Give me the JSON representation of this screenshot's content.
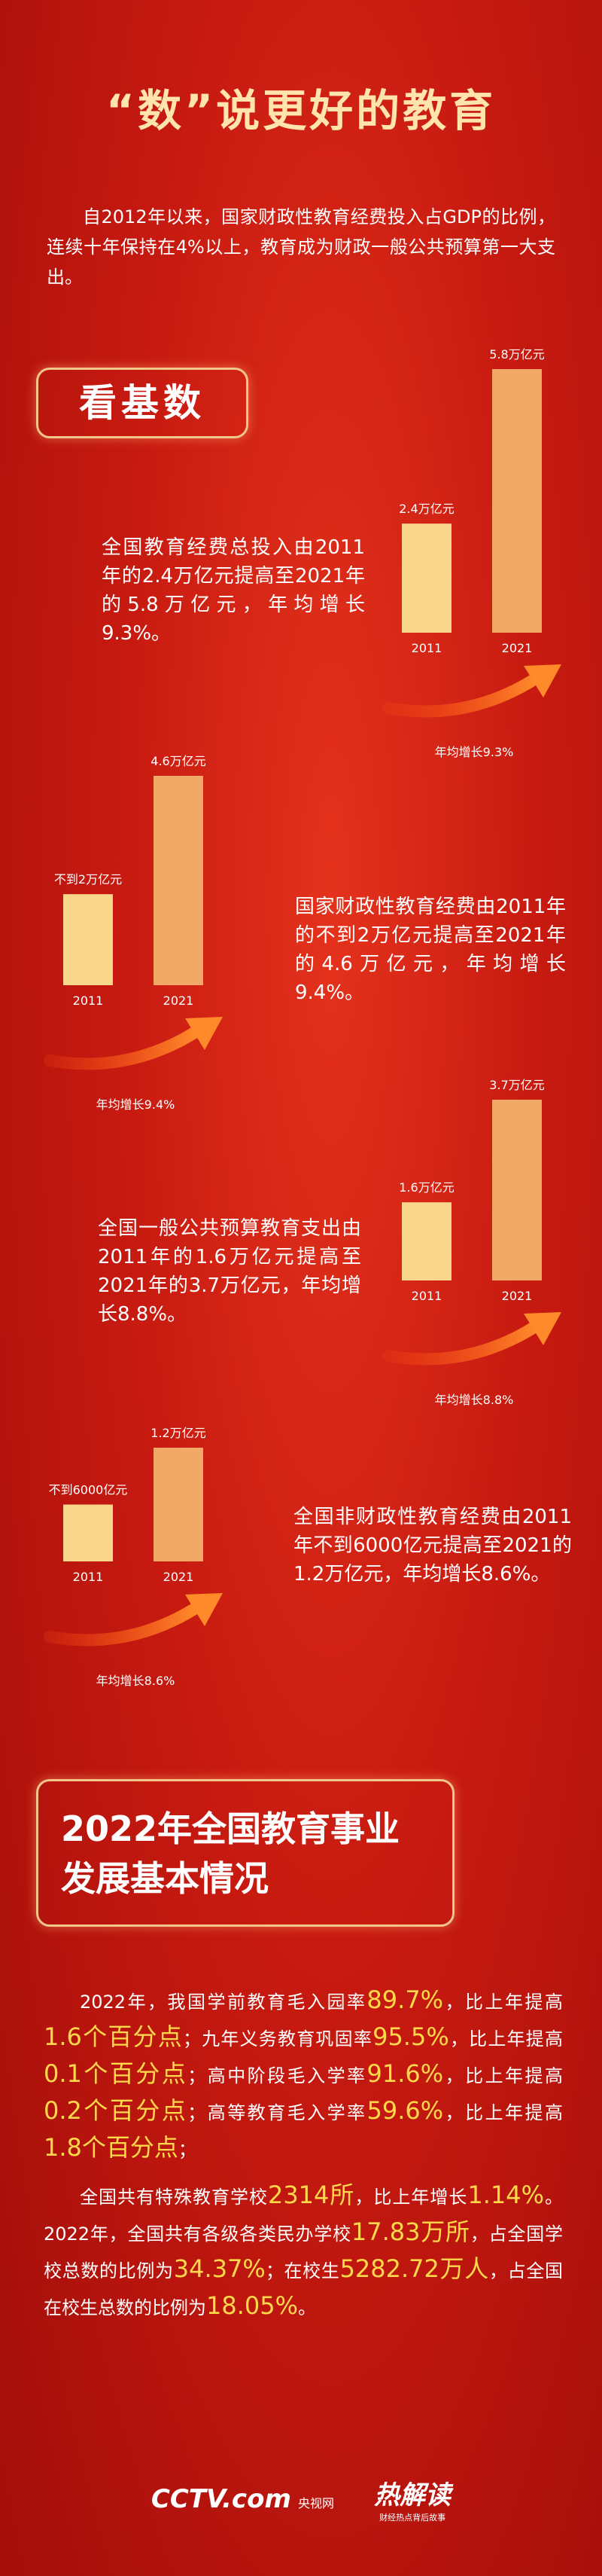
{
  "title": "“数”说更好的教育",
  "intro": "自2012年以来，国家财政性教育经费投入占GDP的比例，连续十年保持在4%以上，教育成为财政一般公共预算第一大支出。",
  "section1_heading": "看基数",
  "stats": [
    {
      "text": "全国教育经费总投入由2011年的2.4万亿元提高至2021年的5.8万亿元，年均增长9.3%。",
      "chart": {
        "type": "bar",
        "categories": [
          "2011",
          "2021"
        ],
        "values": [
          2.4,
          5.8
        ],
        "value_labels": [
          "2.4万亿元",
          "5.8万亿元"
        ],
        "growth": "年均增长9.3%"
      }
    },
    {
      "text": "国家财政性教育经费由2011年的不到2万亿元提高至2021年的4.6万亿元，年均增长9.4%。",
      "chart": {
        "type": "bar",
        "categories": [
          "2011",
          "2021"
        ],
        "values": [
          2,
          4.6
        ],
        "value_labels": [
          "不到2万亿元",
          "4.6万亿元"
        ],
        "growth": "年均增长9.4%"
      }
    },
    {
      "text": "全国一般公共预算教育支出由2011年的1.6万亿元提高至2021年的3.7万亿元，年均增长8.8%。",
      "chart": {
        "type": "bar",
        "categories": [
          "2011",
          "2021"
        ],
        "values": [
          1.6,
          3.7
        ],
        "value_labels": [
          "1.6万亿元",
          "3.7万亿元"
        ],
        "growth": "年均增长8.8%"
      }
    },
    {
      "text": "全国非财政性教育经费由2011年不到6000亿元提高至2021的1.2万亿元，年均增长8.6%。",
      "chart": {
        "type": "bar",
        "categories": [
          "2011",
          "2021"
        ],
        "values": [
          0.6,
          1.2
        ],
        "value_labels": [
          "不到6000亿元",
          "1.2万亿元"
        ],
        "growth": "年均增长8.6%"
      }
    }
  ],
  "section2_heading": [
    "2022年全国教育事业",
    "发展基本情况"
  ],
  "paragraphs": [
    [
      {
        "t": "2022年，我国学前教育毛入园率",
        "hl": false
      },
      {
        "t": "89.7%",
        "hl": true
      },
      {
        "t": "，比上年提高",
        "hl": false
      },
      {
        "t": "1.6个百分点",
        "hl": true
      },
      {
        "t": "；九年义务教育巩固率",
        "hl": false
      },
      {
        "t": "95.5%",
        "hl": true
      },
      {
        "t": "，比上年提高",
        "hl": false
      },
      {
        "t": "0.1个百分点",
        "hl": true
      },
      {
        "t": "；高中阶段毛入学率",
        "hl": false
      },
      {
        "t": "91.6%",
        "hl": true
      },
      {
        "t": "，比上年提高",
        "hl": false
      },
      {
        "t": "0.2个百分点",
        "hl": true
      },
      {
        "t": "；高等教育毛入学率",
        "hl": false
      },
      {
        "t": "59.6%",
        "hl": true
      },
      {
        "t": "，比上年提高",
        "hl": false
      },
      {
        "t": "1.8个百分点",
        "hl": true
      },
      {
        "t": "；",
        "hl": false
      }
    ],
    [
      {
        "t": "全国共有特殊教育学校",
        "hl": false
      },
      {
        "t": "2314所",
        "hl": true
      },
      {
        "t": "，比上年增长",
        "hl": false
      },
      {
        "t": "1.14%",
        "hl": true
      },
      {
        "t": "。2022年，全国共有各级各类民办学校",
        "hl": false
      },
      {
        "t": "17.83万所",
        "hl": true
      },
      {
        "t": "，占全国学校总数的比例为",
        "hl": false
      },
      {
        "t": "34.37%",
        "hl": true
      },
      {
        "t": "；在校生",
        "hl": false
      },
      {
        "t": "5282.72万人",
        "hl": true
      },
      {
        "t": "，占全国在校生总数的比例为",
        "hl": false
      },
      {
        "t": "18.05%",
        "hl": true
      },
      {
        "t": "。",
        "hl": false
      }
    ]
  ],
  "footer": {
    "brand": "CCTV.com",
    "brand_cn": "央视网",
    "column": "热解读",
    "column_sub": "财经热点背后故事"
  }
}
